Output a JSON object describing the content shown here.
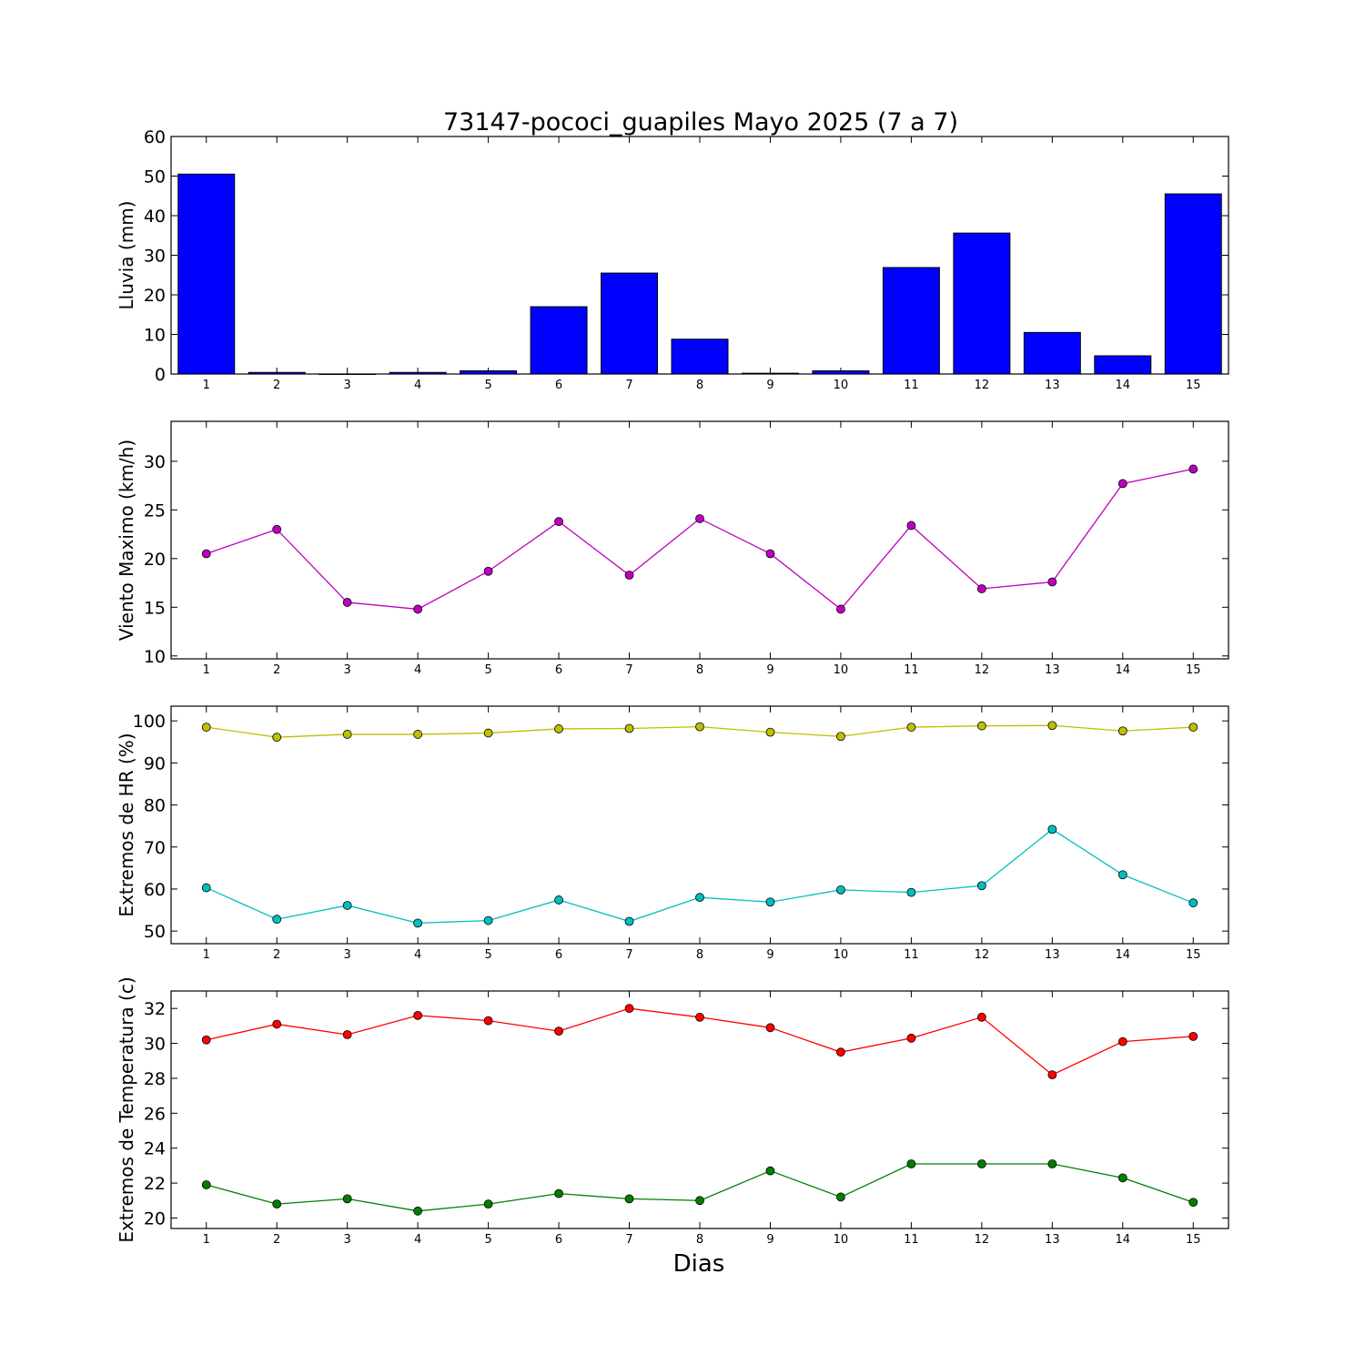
{
  "figure": {
    "title": "73147-pococi_guapiles Mayo 2025  (7 a 7)",
    "xlabel": "Dias"
  },
  "chart_data": [
    {
      "type": "bar",
      "ylabel": "Lluvia (mm)",
      "x": [
        1,
        2,
        3,
        4,
        5,
        6,
        7,
        8,
        9,
        10,
        11,
        12,
        13,
        14,
        15
      ],
      "ylim": [
        0,
        60
      ],
      "yticks": [
        0,
        10,
        20,
        30,
        40,
        50,
        60
      ],
      "grid": false,
      "series": [
        {
          "values": [
            50.5,
            0.4,
            0.0,
            0.4,
            0.8,
            17.0,
            25.5,
            8.8,
            0.2,
            0.8,
            26.9,
            35.6,
            10.5,
            4.6,
            45.5
          ],
          "color": "#0000ff"
        }
      ]
    },
    {
      "type": "line",
      "ylabel": "Viento Maximo (km/h)",
      "x": [
        1,
        2,
        3,
        4,
        5,
        6,
        7,
        8,
        9,
        10,
        11,
        12,
        13,
        14,
        15
      ],
      "ylim": [
        9.7,
        34.1
      ],
      "yticks": [
        10,
        15,
        20,
        25,
        30
      ],
      "grid": false,
      "series": [
        {
          "values": [
            20.5,
            23.0,
            15.5,
            14.8,
            18.7,
            23.8,
            18.3,
            24.1,
            20.5,
            14.8,
            23.4,
            16.9,
            17.6,
            27.7,
            29.2
          ],
          "color": "#bf00bf"
        }
      ]
    },
    {
      "type": "line",
      "ylabel": "Extremos de HR (%)",
      "x": [
        1,
        2,
        3,
        4,
        5,
        6,
        7,
        8,
        9,
        10,
        11,
        12,
        13,
        14,
        15
      ],
      "ylim": [
        47,
        103.5
      ],
      "yticks": [
        50,
        60,
        70,
        80,
        90,
        100
      ],
      "grid": false,
      "series": [
        {
          "values": [
            98.5,
            96.1,
            96.8,
            96.8,
            97.1,
            98.1,
            98.2,
            98.6,
            97.3,
            96.3,
            98.5,
            98.8,
            98.9,
            97.6,
            98.5
          ],
          "color": "#bfbf00"
        },
        {
          "values": [
            60.3,
            52.8,
            56.1,
            51.9,
            52.5,
            57.4,
            52.3,
            58.0,
            56.9,
            59.8,
            59.2,
            60.8,
            74.2,
            63.4,
            56.7
          ],
          "color": "#00bfbf"
        }
      ]
    },
    {
      "type": "line",
      "ylabel": "Extremos de Temperatura (c)",
      "x": [
        1,
        2,
        3,
        4,
        5,
        6,
        7,
        8,
        9,
        10,
        11,
        12,
        13,
        14,
        15
      ],
      "ylim": [
        19.4,
        33.0
      ],
      "yticks": [
        20,
        22,
        24,
        26,
        28,
        30,
        32
      ],
      "grid": false,
      "series": [
        {
          "values": [
            30.2,
            31.1,
            30.5,
            31.6,
            31.3,
            30.7,
            32.0,
            31.5,
            30.9,
            29.5,
            30.3,
            31.5,
            28.2,
            30.1,
            30.4
          ],
          "color": "#ff0000"
        },
        {
          "values": [
            21.9,
            20.8,
            21.1,
            20.4,
            20.8,
            21.4,
            21.1,
            21.0,
            22.7,
            21.2,
            23.1,
            23.1,
            23.1,
            22.3,
            20.9
          ],
          "color": "#007f00"
        }
      ]
    }
  ]
}
